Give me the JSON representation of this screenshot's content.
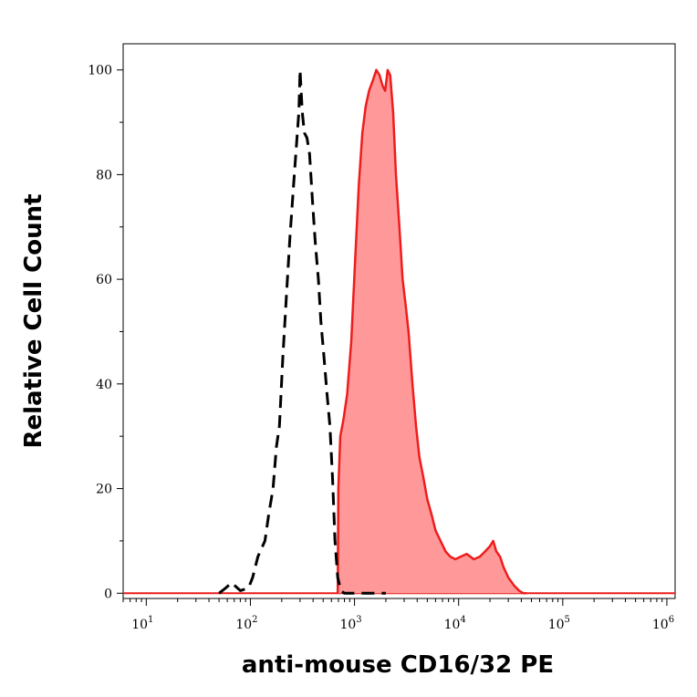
{
  "chart_data": {
    "type": "area",
    "title": "",
    "xlabel": "anti-mouse CD16/32 PE",
    "ylabel": "Relative Cell Count",
    "x_scale": "log",
    "xlim": [
      6,
      1200000
    ],
    "ylim": [
      -1,
      105
    ],
    "grid": false,
    "legend": "none",
    "x_ticks": [
      {
        "value": 10,
        "base": "10",
        "exp": "1"
      },
      {
        "value": 100,
        "base": "10",
        "exp": "2"
      },
      {
        "value": 1000,
        "base": "10",
        "exp": "3"
      },
      {
        "value": 10000,
        "base": "10",
        "exp": "4"
      },
      {
        "value": 100000,
        "base": "10",
        "exp": "5"
      },
      {
        "value": 1000000,
        "base": "10",
        "exp": "6"
      }
    ],
    "y_ticks": [
      {
        "value": 0,
        "label": "0"
      },
      {
        "value": 20,
        "label": "20"
      },
      {
        "value": 40,
        "label": "40"
      },
      {
        "value": 60,
        "label": "60"
      },
      {
        "value": 80,
        "label": "80"
      },
      {
        "value": 100,
        "label": "100"
      }
    ],
    "series": [
      {
        "style": "dashed-line",
        "color": "#000000",
        "points": [
          [
            50,
            0
          ],
          [
            58,
            1
          ],
          [
            66,
            2
          ],
          [
            80,
            0.5
          ],
          [
            96,
            1
          ],
          [
            105,
            3
          ],
          [
            118,
            7
          ],
          [
            138,
            10
          ],
          [
            150,
            15
          ],
          [
            165,
            20
          ],
          [
            178,
            28
          ],
          [
            190,
            32
          ],
          [
            205,
            45
          ],
          [
            222,
            57
          ],
          [
            240,
            68
          ],
          [
            260,
            78
          ],
          [
            278,
            86
          ],
          [
            292,
            92
          ],
          [
            300,
            100
          ],
          [
            315,
            92
          ],
          [
            330,
            88
          ],
          [
            350,
            87
          ],
          [
            370,
            84
          ],
          [
            395,
            75
          ],
          [
            420,
            67
          ],
          [
            450,
            60
          ],
          [
            475,
            52
          ],
          [
            510,
            45
          ],
          [
            545,
            38
          ],
          [
            580,
            32
          ],
          [
            615,
            22
          ],
          [
            650,
            10
          ],
          [
            690,
            3
          ],
          [
            740,
            0.5
          ],
          [
            800,
            0
          ],
          [
            2000,
            0
          ]
        ]
      },
      {
        "style": "filled",
        "color": "#ee1c1c",
        "fill": "#ff9999",
        "points": [
          [
            690,
            0
          ],
          [
            700,
            20
          ],
          [
            730,
            30
          ],
          [
            780,
            33
          ],
          [
            850,
            38
          ],
          [
            930,
            48
          ],
          [
            1010,
            63
          ],
          [
            1100,
            78
          ],
          [
            1190,
            88
          ],
          [
            1280,
            93
          ],
          [
            1380,
            96
          ],
          [
            1500,
            98
          ],
          [
            1620,
            100
          ],
          [
            1740,
            99
          ],
          [
            1860,
            97
          ],
          [
            1970,
            96
          ],
          [
            2080,
            100
          ],
          [
            2200,
            99
          ],
          [
            2350,
            92
          ],
          [
            2500,
            80
          ],
          [
            2700,
            70
          ],
          [
            2900,
            60
          ],
          [
            3100,
            55
          ],
          [
            3300,
            50
          ],
          [
            3600,
            40
          ],
          [
            3900,
            32
          ],
          [
            4200,
            26
          ],
          [
            4600,
            22
          ],
          [
            5000,
            18
          ],
          [
            5500,
            15
          ],
          [
            6000,
            12
          ],
          [
            6700,
            10
          ],
          [
            7500,
            8
          ],
          [
            8300,
            7
          ],
          [
            9300,
            6.5
          ],
          [
            10500,
            7
          ],
          [
            12000,
            7.5
          ],
          [
            14000,
            6.5
          ],
          [
            16000,
            7
          ],
          [
            18000,
            8
          ],
          [
            20000,
            9
          ],
          [
            21500,
            10
          ],
          [
            23000,
            8
          ],
          [
            25000,
            7
          ],
          [
            27000,
            5
          ],
          [
            30000,
            3
          ],
          [
            34000,
            1.5
          ],
          [
            38000,
            0.5
          ],
          [
            42000,
            0
          ],
          [
            45000,
            0
          ]
        ]
      }
    ]
  }
}
